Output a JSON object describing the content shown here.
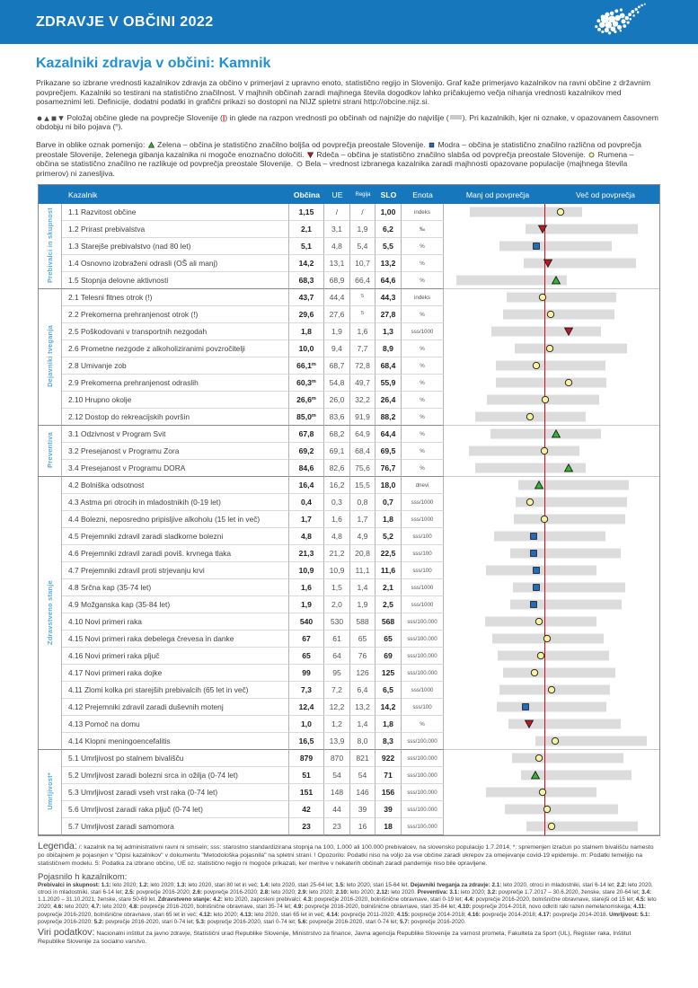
{
  "colors": {
    "band_blue": "#1677bd",
    "title_blue": "#2191d4",
    "group_label_blue": "#5aabdc",
    "range_bar_gray": "#dcdcdc",
    "national_average_line_red": "#e30613",
    "marker_yellow": "#f9f2a0",
    "marker_green": "#2eb82e",
    "marker_blue": "#1e6fc0",
    "marker_red": "#bf1722",
    "marker_white": "#ffffff"
  },
  "header": {
    "band_title": "ZDRAVJE V OBČINI 2022",
    "page_title": "Kazalniki zdravja v občini: Kamnik",
    "logo": "slovenia-dot-map"
  },
  "intro": {
    "text": "Prikazane so izbrane vrednosti kazalnikov zdravja za občino v primerjavi z upravno enoto, statistično regijo in Slovenijo. Graf kaže primerjavo kazalnikov na ravni občine z državnim povprečjem. Kazalniki so testirani na statistično značilnost. V majhnih občinah zaradi majhnega števila dogodkov lahko pričakujemo večja nihanja vrednosti kazalnikov med posameznimi leti. Definicije, dodatni podatki in grafični prikazi so dostopni na NIJZ spletni strani http://obcine.nijz.si."
  },
  "position_note": {
    "segments": [
      {
        "i": "dark-circle"
      },
      {
        "i": "dark-triangle-up"
      },
      {
        "i": "dark-square"
      },
      {
        "i": "dark-triangle-down"
      },
      {
        "t": " Položaj občine glede na povprečje Slovenije ("
      },
      {
        "i": "red-pipe"
      },
      {
        "t": ") in glede na razpon vrednosti po občinah od najnižje do najvišje ("
      },
      {
        "i": "gray-bar"
      },
      {
        "t": "). Pri kazalnikih, kjer ni oznake, v opazovanem časovnem obdobju ni bilo pojava ("
      },
      {
        "s": "n"
      },
      {
        "t": ")."
      }
    ]
  },
  "color_note": {
    "segments": [
      {
        "t": "Barve in oblike oznak pomenijo: "
      },
      {
        "i": "green-triangle"
      },
      {
        "t": " Zelena – občina je statistično značilno boljša od povprečja preostale Slovenije. "
      },
      {
        "i": "blue-square"
      },
      {
        "t": " Modra – občina je statistično značilno različna od povprečja preostale Slovenije, želenega gibanja kazalnika ni mogoče enoznačno določiti. "
      },
      {
        "i": "red-triangle"
      },
      {
        "t": " Rdeča – občina je statistično značilno slabša od povprečja preostale Slovenije. "
      },
      {
        "i": "yellow-circle"
      },
      {
        "t": " Rumena – občina se statistično značilno ne razlikuje od povprečja preostale Slovenije. "
      },
      {
        "i": "white-circle"
      },
      {
        "t": " Bela – vrednost izbranega kazalnika zaradi majhnosti opazovane populacije (majhnega števila primerov) ni zanesljiva."
      }
    ]
  },
  "table": {
    "red_line_pct": 47,
    "col_headers": {
      "indicator": "Kazalnik",
      "obcina": "Občina",
      "ue": "UE",
      "regija": "Regija",
      "slo": "SLO",
      "enota": "Enota",
      "less": "Manj od povprečja",
      "more": "Več od povprečja"
    },
    "groups": [
      {
        "label": "Prebivalci in skupnost",
        "rows": [
          {
            "name": "1.1 Razvitost občine",
            "obcina": "1,15",
            "ue": "/",
            "regija": "/",
            "slo": "1,00",
            "enota": "indeks",
            "marker": "yellow-circle",
            "pos": 54,
            "bar": [
              12,
              64
            ]
          },
          {
            "name": "1.2 Prirast prebivalstva",
            "obcina": "2,1",
            "ue": "3,1",
            "regija": "1,9",
            "slo": "6,2",
            "enota": "‰",
            "marker": "red-triangle",
            "pos": 46,
            "bar": [
              38,
              90
            ]
          },
          {
            "name": "1.3 Starejše prebivalstvo (nad 80 let)",
            "obcina": "5,1",
            "ue": "4,8",
            "regija": "5,4",
            "slo": "5,5",
            "enota": "%",
            "marker": "blue-square",
            "pos": 43,
            "bar": [
              26,
              78
            ]
          },
          {
            "name": "1.4 Osnovno izobraženi odrasli (OŠ ali manj)",
            "obcina": "14,2",
            "ue": "13,1",
            "regija": "10,7",
            "slo": "13,2",
            "enota": "%",
            "marker": "red-triangle",
            "pos": 48.5,
            "bar": [
              37,
              89
            ]
          },
          {
            "name": "1.5 Stopnja delovne aktivnosti",
            "obcina": "68,3",
            "ue": "68,9",
            "regija": "66,4",
            "slo": "64,6",
            "enota": "%",
            "marker": "green-triangle",
            "pos": 52,
            "bar": [
              6,
              57
            ]
          }
        ]
      },
      {
        "label": "Dejavniki tveganja",
        "rows": [
          {
            "name": "2.1 Telesni fitnes otrok (!)",
            "obcina": "43,7",
            "ue": "44,4",
            "regija": "^5",
            "slo": "44,3",
            "enota": "indeks",
            "marker": "yellow-circle",
            "pos": 46,
            "bar": [
              29,
              80
            ]
          },
          {
            "name": "2.2 Prekomerna prehranjenost otrok (!)",
            "obcina": "29,6",
            "ue": "27,6",
            "regija": "^5",
            "slo": "27,8",
            "enota": "%",
            "marker": "yellow-circle",
            "pos": 49.5,
            "bar": [
              27.5,
              79
            ]
          },
          {
            "name": "2.5 Poškodovani v transportnih nezgodah",
            "obcina": "1,8",
            "ue": "1,9",
            "regija": "1,6",
            "slo": "1,3",
            "enota": "sss/1000",
            "marker": "red-triangle",
            "pos": 58,
            "bar": [
              22,
              73
            ]
          },
          {
            "name": "2.6 Prometne nezgode z alkoholiziranimi povzročitelji",
            "obcina": "10,0",
            "ue": "9,4",
            "regija": "7,7",
            "slo": "8,9",
            "enota": "%",
            "marker": "yellow-circle",
            "pos": 49,
            "bar": [
              33,
              85
            ]
          },
          {
            "name": "2.8 Umivanje zob",
            "obcina": "66,1^m",
            "ue": "68,7",
            "regija": "72,8",
            "slo": "68,4",
            "enota": "%",
            "marker": "yellow-circle",
            "pos": 43,
            "bar": [
              24,
              75
            ]
          },
          {
            "name": "2.9 Prekomerna prehranjenost odraslih",
            "obcina": "60,3^m",
            "ue": "54,8",
            "regija": "49,7",
            "slo": "55,9",
            "enota": "%",
            "marker": "yellow-circle",
            "pos": 58,
            "bar": [
              24,
              75.5
            ]
          },
          {
            "name": "2.10 Hrupno okolje",
            "obcina": "26,6^m",
            "ue": "26,0",
            "regija": "32,2",
            "slo": "26,4",
            "enota": "%",
            "marker": "yellow-circle",
            "pos": 47,
            "bar": [
              20,
              72
            ]
          },
          {
            "name": "2.12 Dostop do rekreacijskih površin",
            "obcina": "85,0^m",
            "ue": "83,6",
            "regija": "91,9",
            "slo": "88,2",
            "enota": "%",
            "marker": "yellow-circle",
            "pos": 40,
            "bar": [
              14.5,
              66
            ]
          }
        ]
      },
      {
        "label": "Preventiva",
        "rows": [
          {
            "name": "3.1 Odzivnost v Program Svit",
            "obcina": "67,8",
            "ue": "68,2",
            "regija": "64,9",
            "slo": "64,4",
            "enota": "%",
            "marker": "green-triangle",
            "pos": 52,
            "bar": [
              21.5,
              73
            ]
          },
          {
            "name": "3.2 Presejanost v Programu Zora",
            "obcina": "69,2",
            "ue": "69,1",
            "regija": "68,4",
            "slo": "69,5",
            "enota": "%",
            "marker": "yellow-circle",
            "pos": 46.5,
            "bar": [
              11.5,
              63
            ]
          },
          {
            "name": "3.4 Presejanost v Programu DORA",
            "obcina": "84,6",
            "ue": "82,6",
            "regija": "75,6",
            "slo": "76,7",
            "enota": "%",
            "marker": "green-triangle",
            "pos": 58,
            "bar": [
              14.5,
              66
            ]
          }
        ]
      },
      {
        "label": "Zdravstveno stanje",
        "rows": [
          {
            "name": "4.2 Bolniška odsotnost",
            "obcina": "16,4",
            "ue": "16,2",
            "regija": "15,5",
            "slo": "18,0",
            "enota": "dnevi",
            "marker": "green-triangle",
            "pos": 44,
            "bar": [
              34.5,
              86
            ]
          },
          {
            "name": "4.3 Astma pri otrocih in mladostnikih (0-19 let)",
            "obcina": "0,4",
            "ue": "0,3",
            "regija": "0,8",
            "slo": "0,7",
            "enota": "sss/1000",
            "marker": "yellow-circle",
            "pos": 40,
            "bar": [
              33.5,
              85
            ]
          },
          {
            "name": "4.4 Bolezni, neposredno pripisljive alkoholu (15 let in več)",
            "obcina": "1,7",
            "ue": "1,6",
            "regija": "1,7",
            "slo": "1,8",
            "enota": "sss/1000",
            "marker": "yellow-circle",
            "pos": 46.5,
            "bar": [
              32.5,
              84
            ]
          },
          {
            "name": "4.5 Prejemniki zdravil zaradi sladkorne bolezni",
            "obcina": "4,8",
            "ue": "4,8",
            "regija": "4,9",
            "slo": "5,2",
            "enota": "sss/100",
            "marker": "blue-square",
            "pos": 41.5,
            "bar": [
              23.5,
              75
            ]
          },
          {
            "name": "4.6 Prejemniki zdravil zaradi poviš. krvnega tlaka",
            "obcina": "21,3",
            "ue": "21,2",
            "regija": "20,8",
            "slo": "22,5",
            "enota": "sss/100",
            "marker": "blue-square",
            "pos": 41.5,
            "bar": [
              31,
              82
            ]
          },
          {
            "name": "4.7 Prejemniki zdravil proti strjevanju krvi",
            "obcina": "10,9",
            "ue": "10,9",
            "regija": "11,1",
            "slo": "11,6",
            "enota": "sss/100",
            "marker": "blue-square",
            "pos": 43,
            "bar": [
              19.5,
              71
            ]
          },
          {
            "name": "4.8 Srčna kap (35-74 let)",
            "obcina": "1,6",
            "ue": "1,5",
            "regija": "1,4",
            "slo": "2,1",
            "enota": "sss/1000",
            "marker": "blue-square",
            "pos": 43,
            "bar": [
              32,
              84
            ]
          },
          {
            "name": "4.9 Možganska kap (35-84 let)",
            "obcina": "1,9",
            "ue": "2,0",
            "regija": "1,9",
            "slo": "2,5",
            "enota": "sss/1000",
            "marker": "blue-square",
            "pos": 41.5,
            "bar": [
              31,
              82.5
            ]
          },
          {
            "name": "4.10 Novi primeri raka",
            "obcina": "540",
            "ue": "530",
            "regija": "588",
            "slo": "568",
            "enota": "sss/100.000",
            "marker": "yellow-circle",
            "pos": 44,
            "bar": [
              19,
              71
            ]
          },
          {
            "name": "4.15 Novi primeri raka debelega črevesa in danke",
            "obcina": "67",
            "ue": "61",
            "regija": "65",
            "slo": "65",
            "enota": "sss/100.000",
            "marker": "yellow-circle",
            "pos": 48,
            "bar": [
              22.5,
              74
            ]
          },
          {
            "name": "4.16 Novi primeri raka pljuč",
            "obcina": "65",
            "ue": "64",
            "regija": "76",
            "slo": "69",
            "enota": "sss/100.000",
            "marker": "yellow-circle",
            "pos": 45,
            "bar": [
              25,
              76.5
            ]
          },
          {
            "name": "4.17 Novi primeri raka dojke",
            "obcina": "99",
            "ue": "95",
            "regija": "126",
            "slo": "125",
            "enota": "sss/100.000",
            "marker": "yellow-circle",
            "pos": 42,
            "bar": [
              27.5,
              79.5
            ]
          },
          {
            "name": "4.11 Zlomi kolka pri starejših prebivalcih (65 let in več)",
            "obcina": "7,3",
            "ue": "7,2",
            "regija": "6,4",
            "slo": "6,5",
            "enota": "sss/1000",
            "marker": "yellow-circle",
            "pos": 50,
            "bar": [
              26,
              77
            ]
          },
          {
            "name": "4.12 Prejemniki zdravil zaradi duševnih motenj",
            "obcina": "12,4",
            "ue": "12,2",
            "regija": "13,2",
            "slo": "14,2",
            "enota": "sss/100",
            "marker": "blue-square",
            "pos": 38,
            "bar": [
              24.5,
              75.5
            ]
          },
          {
            "name": "4.13 Pomoč na domu",
            "obcina": "1,0",
            "ue": "1,2",
            "regija": "1,4",
            "slo": "1,8",
            "enota": "%",
            "marker": "red-triangle",
            "pos": 39.5,
            "bar": [
              30,
              82
            ]
          },
          {
            "name": "4.14 Klopni meningoencefalitis",
            "obcina": "16,5",
            "ue": "13,9",
            "regija": "8,0",
            "slo": "8,3",
            "enota": "sss/100.000",
            "marker": "yellow-circle",
            "pos": 51.5,
            "bar": [
              42.5,
              94
            ]
          }
        ]
      },
      {
        "label": "Umrljivost*",
        "rows": [
          {
            "name": "5.1 Umrljivost po stalnem bivališču",
            "obcina": "879",
            "ue": "870",
            "regija": "821",
            "slo": "922",
            "enota": "sss/100.000",
            "marker": "yellow-circle",
            "pos": 44,
            "bar": [
              31.5,
              83.5
            ]
          },
          {
            "name": "5.2 Umrljivost zaradi bolezni srca in ožilja (0-74 let)",
            "obcina": "51",
            "ue": "54",
            "regija": "54",
            "slo": "71",
            "enota": "sss/100.000",
            "marker": "green-triangle",
            "pos": 42.5,
            "bar": [
              36,
              87
            ]
          },
          {
            "name": "5.3 Umrljivost zaradi vseh vrst raka (0-74 let)",
            "obcina": "151",
            "ue": "148",
            "regija": "146",
            "slo": "156",
            "enota": "sss/100.000",
            "marker": "yellow-circle",
            "pos": 46,
            "bar": [
              19.5,
              71
            ]
          },
          {
            "name": "5.6 Umrljivost zaradi raka pljuč (0-74 let)",
            "obcina": "42",
            "ue": "44",
            "regija": "39",
            "slo": "39",
            "enota": "sss/100.000",
            "marker": "yellow-circle",
            "pos": 48,
            "bar": [
              28.5,
              81
            ]
          },
          {
            "name": "5.7 Umrljivost zaradi samomora",
            "obcina": "23",
            "ue": "23",
            "regija": "16",
            "slo": "18",
            "enota": "sss/100.000",
            "marker": "yellow-circle",
            "pos": 50,
            "bar": [
              38.5,
              90
            ]
          }
        ]
      }
    ]
  },
  "legend": {
    "title": "Legenda:",
    "text": " /: kazalnik na tej administrativni ravni ni smiseln; sss: starostno standardizirana stopnja na 100, 1.000 ali 100.000 prebivalcev, na slovensko populacijo 1.7.2014; *: spremenjen izračun po stalnem bivališču namesto po običajnem je pojasnjen v \"Opisi kazalnikov\" v dokumentu \"Metodološka pojasnila\" na spletni strani. ! Opozorilo: Podatki niso na voljo za vse občine zaradi ukrepov za omejevanje covid-19 epidemije. m: Podatki temeljijo na statističnem modelu. 5: Podatka za izbrano občino, UE oz. statistično regijo ni mogoče prikazati, ker meritve v nekaterih občinah zaradi pandemije niso bile opravljene."
  },
  "pojasnilo": {
    "title": "Pojasnilo h kazalnikom:",
    "text": "**Prebivalci in skupnost:** **1.1:** leto 2020; **1.2:** leto 2020; **1.3:** leto 2020, stari 80 let in več; **1.4:** leto 2020, stari 25-64 let; **1.5:** leto 2020, stari 15-64 let. **Dejavniki tveganja za zdravje:** **2.1:** leto 2020, otroci in mladostniki, stari 6-14 let; **2.2:** leto 2020, otroci in mladostniki, stari 6-14 let; **2.5:** povprečje 2016-2020; **2.6:** povprečje 2016-2020; **2.8:** leto 2020; **2.9:** leto 2020; **2.10:** leto 2020; **2.12:** leto 2020. **Preventiva:** **3.1:** leto 2020; **3.2:** povprečje 1.7.2017 – 30.6.2020, ženske, stare 20-64 let; **3.4:** 1.1.2020 – 31.10.2021, ženske, stare 50-69 let. **Zdravstveno stanje:** **4.2:** leto 2020, zaposleni prebivalci; **4.3:** povprečje 2016-2020, bolnišnične obravnave, stari 0-19 let; **4.4:** povprečje 2016-2020, bolnišnične obravnave, starejši od 15 let; **4.5:** leto 2020; **4.6:** leto 2020; **4.7:** leto 2020; **4.8:** povprečje 2016-2020, bolnišnične obravnave, stari 35-74 let; **4.9:** povprečje 2016-2020, bolnišnične obravnave, stari 35-84 let; **4.10:** povprečje 2014-2018, novo odkriti raki razen nemelanomskega; **4.11:** povprečje 2016-2020, bolnišnične obravnave, stari 65 let in več; **4.12:** leto 2020; **4.13:** leto 2020, stari 65 let in več; **4.14:** povprečje 2011-2020; **4.15:** povprečje 2014-2018; **4.16:** povprečje 2014-2018; **4.17:** povprečje 2014-2018. **Umrljivost:** **5.1:** povprečje 2016-2020; **5.2:** povprečje 2016-2020, stari 0-74 let; **5.3:** povprečje 2016-2020, stari 0-74 let; **5.6:** povprečje 2016-2020, stari 0-74 let; **5.7:** povprečje 2016-2020."
  },
  "viri": {
    "title": "Viri podatkov:",
    "text": " Nacionalni inštitut za javno zdravje, Statistični urad Republike Slovenije, Ministrstvo za finance, Javna agencija Republike Slovenije za varnost prometa, Fakulteta za šport (UL), Register raka, Inštitut Republike Slovenije za socialno varstvo."
  }
}
